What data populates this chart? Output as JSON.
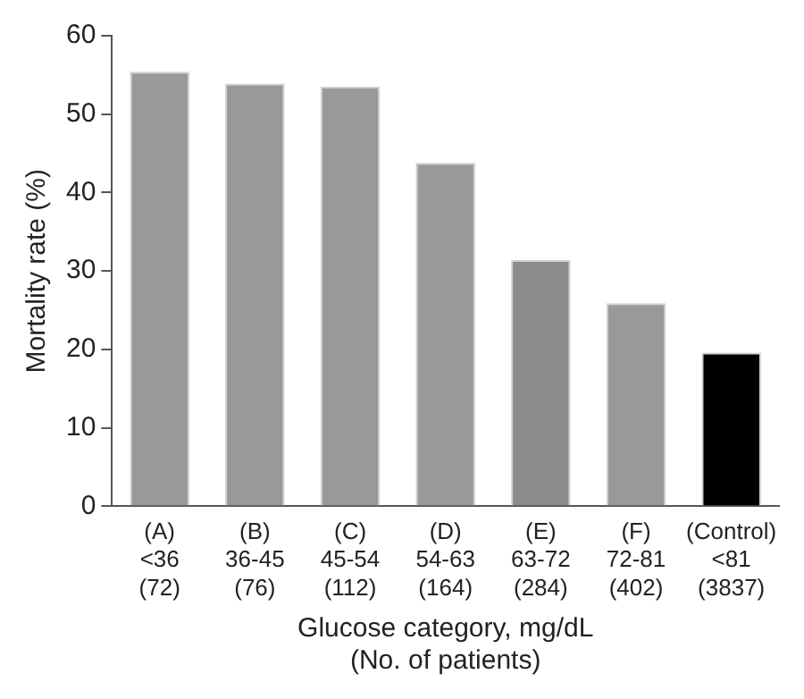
{
  "chart_data": {
    "type": "bar",
    "xlabel": "Glucose category, mg/dL\n(No. of patients)",
    "ylabel": "Mortality rate (%)",
    "categories": [
      "(A)\n<36\n(72)",
      "(B)\n36-45\n(76)",
      "(C)\n45-54\n(112)",
      "(D)\n54-63\n(164)",
      "(E)\n63-72\n(284)",
      "(F)\n72-81\n(402)",
      "(Control)\n<81\n(3837)"
    ],
    "values": [
      55.4,
      53.9,
      53.5,
      43.8,
      31.4,
      25.9,
      19.6
    ],
    "colors": [
      "#999999",
      "#999999",
      "#999999",
      "#999999",
      "#8c8c8c",
      "#999999",
      "#000000"
    ],
    "ylim": [
      0,
      60
    ],
    "yticks": [
      0,
      10,
      20,
      30,
      40,
      50,
      60
    ],
    "grid": false,
    "legend": false
  }
}
